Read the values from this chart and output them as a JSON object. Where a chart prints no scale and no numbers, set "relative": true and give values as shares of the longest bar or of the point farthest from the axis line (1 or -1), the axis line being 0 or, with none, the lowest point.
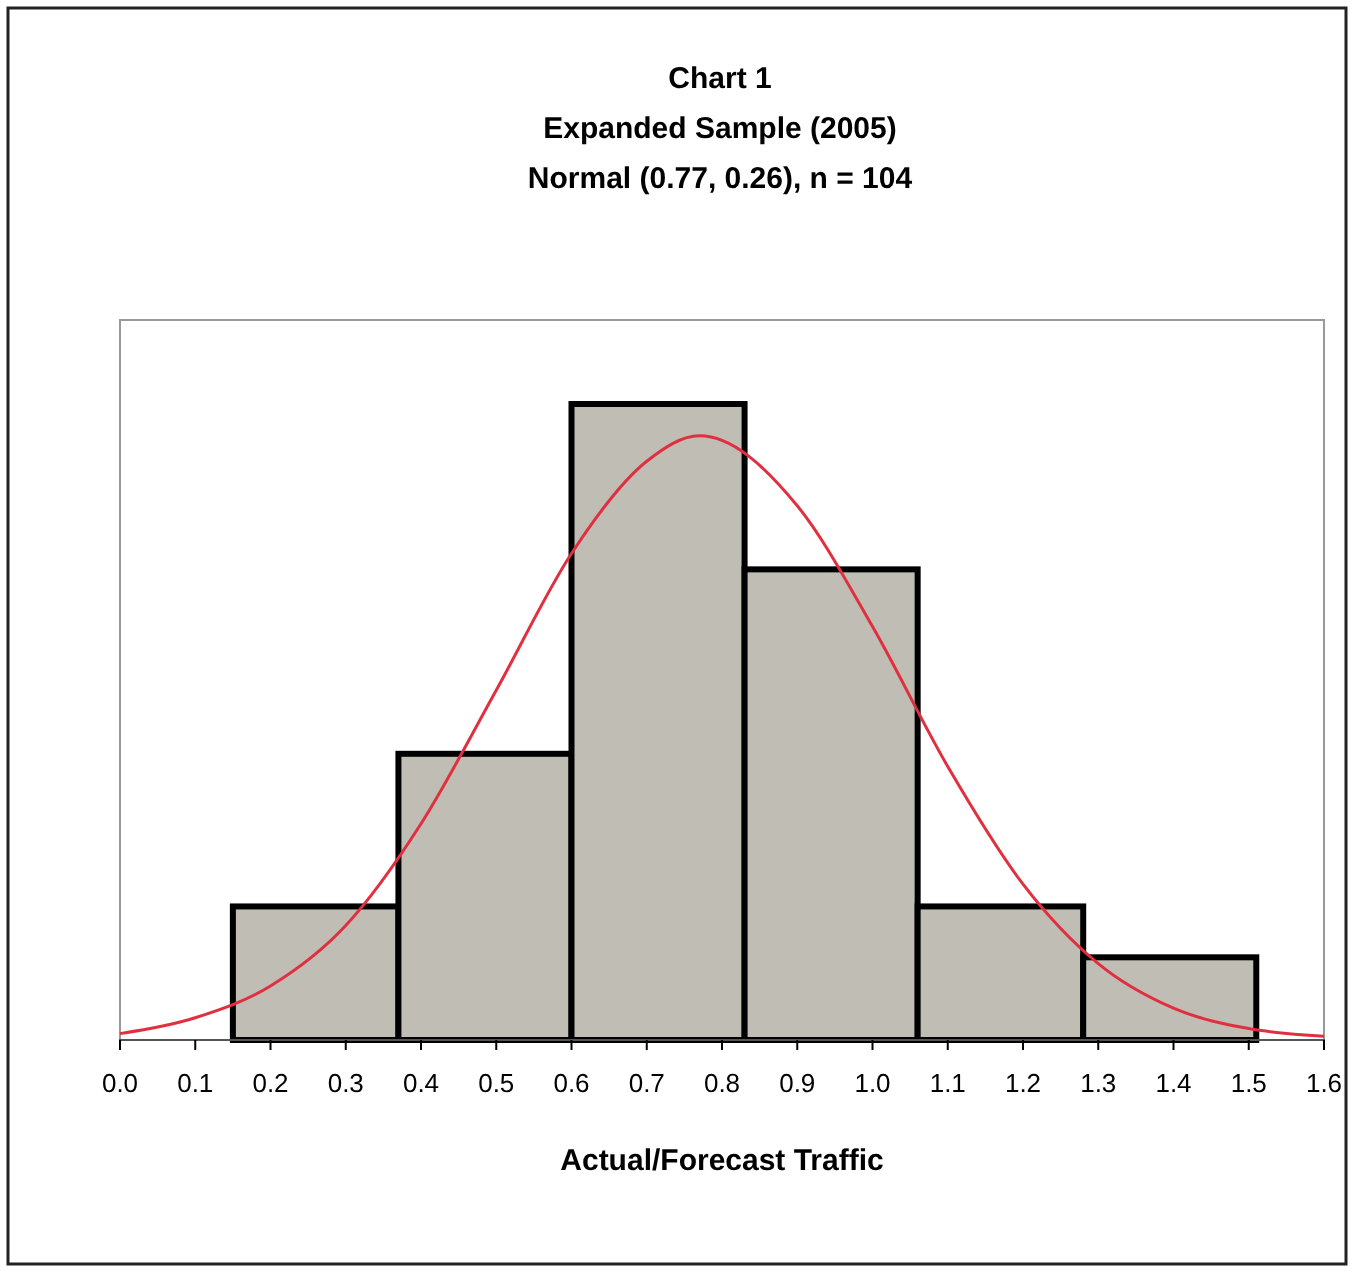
{
  "chart_data": {
    "type": "histogram",
    "title": "Chart 1",
    "subtitle": "Expanded Sample (2005)\nNormal (0.77, 0.26), n = 104",
    "xlabel": "Actual/Forecast Traffic",
    "relative": true,
    "bins": [
      0.15,
      0.37,
      0.6,
      0.83,
      1.06,
      1.28,
      1.51
    ],
    "values": [
      0.21,
      0.45,
      1,
      0.74,
      0.21,
      0.13
    ],
    "color": "#c0bdb4",
    "series": [
      {
        "type": "line",
        "color": "#e03040",
        "x": [
          0,
          0.1,
          0.2,
          0.3,
          0.4,
          0.5,
          0.6,
          0.7,
          0.77,
          0.9,
          1.0,
          1.1,
          1.2,
          1.3,
          1.4,
          1.5,
          1.6
        ],
        "values": [
          0.01,
          0.035,
          0.085,
          0.18,
          0.34,
          0.55,
          0.765,
          0.91,
          0.95,
          0.84,
          0.65,
          0.43,
          0.245,
          0.12,
          0.05,
          0.018,
          0.006
        ]
      }
    ],
    "xlim": [
      0,
      1.6
    ],
    "xticks": [
      {
        "value": 0,
        "label": "0.0"
      },
      0.1,
      0.2,
      0.3,
      0.4,
      0.5,
      0.6,
      0.7,
      0.8,
      0.9,
      {
        "value": 1,
        "label": "1.0"
      },
      1.1,
      1.2,
      1.3,
      1.4,
      1.5,
      1.6
    ],
    "grid": false
  }
}
